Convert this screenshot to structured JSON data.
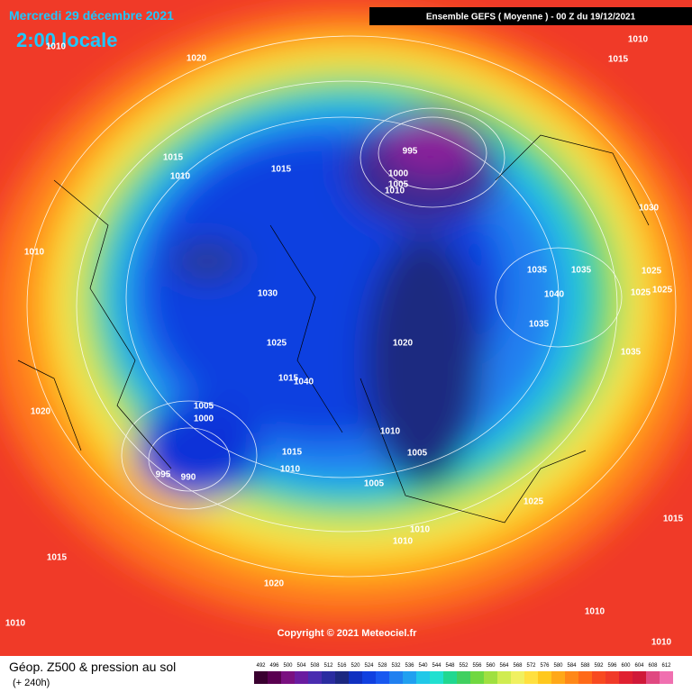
{
  "header": {
    "date": "Mercredi 29 décembre 2021",
    "time": "2:00 locale",
    "run": "Ensemble GEFS  ( Moyenne )  -  00 Z du 19/12/2021"
  },
  "isobar_labels": [
    1010,
    1020,
    1015,
    1010,
    1015,
    995,
    1000,
    1005,
    1010,
    1010,
    1030,
    1025,
    1020,
    1035,
    1035,
    1040,
    1035,
    1035,
    1025,
    1025,
    1025,
    1030,
    1015,
    1010,
    1020,
    1005,
    1000,
    1040,
    1015,
    1010,
    1005,
    1015,
    1010,
    995,
    990,
    1005,
    1025,
    1015,
    1010,
    1010,
    1015,
    1020,
    1010,
    1010,
    1010
  ],
  "copyright": "Copyright © 2021 Meteociel.fr",
  "legend": {
    "title": "Géop. Z500 & pression au sol",
    "subtitle": "(+ 240h)",
    "scale": [
      492,
      496,
      500,
      504,
      508,
      512,
      516,
      520,
      524,
      528,
      532,
      536,
      540,
      544,
      548,
      552,
      556,
      560,
      564,
      568,
      572,
      576,
      580,
      584,
      588,
      592,
      596,
      600,
      604,
      608,
      612
    ]
  }
}
